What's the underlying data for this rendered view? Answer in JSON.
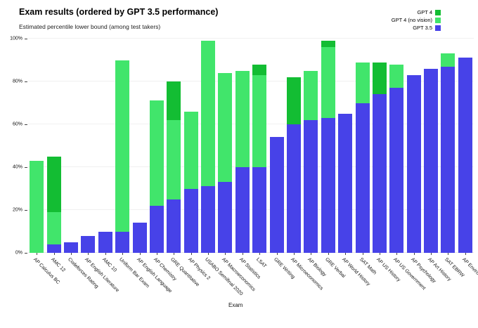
{
  "header": {
    "title": "Exam results (ordered by GPT 3.5 performance)",
    "subtitle": "Estimated percentile lower bound (among test takers)"
  },
  "legend": {
    "position": "top-right",
    "items": [
      {
        "name": "gpt4",
        "label": "GPT 4",
        "color": "#13bd33"
      },
      {
        "name": "gpt4-no-vision",
        "label": "GPT 4 (no vision)",
        "color": "#41e56b"
      },
      {
        "name": "gpt35",
        "label": "GPT 3.5",
        "color": "#4742e8"
      }
    ]
  },
  "chart_data": {
    "type": "bar",
    "title": "Exam results (ordered by GPT 3.5 performance)",
    "subtitle": "Estimated percentile lower bound (among test takers)",
    "xlabel": "Exam",
    "ylabel": "Estimated percentile lower bound (among test takers)",
    "ylim": [
      0,
      100
    ],
    "grid": true,
    "legend_position": "top-right",
    "colors": {
      "gpt4": "#13bd33",
      "gpt4_no_vision": "#41e56b",
      "gpt35": "#4742e8"
    },
    "yticks": [
      {
        "value": 0,
        "label": "0%"
      },
      {
        "value": 20,
        "label": "20%"
      },
      {
        "value": 40,
        "label": "40%"
      },
      {
        "value": 60,
        "label": "60%"
      },
      {
        "value": 80,
        "label": "80%"
      },
      {
        "value": 100,
        "label": "100%"
      }
    ],
    "exams": [
      {
        "exam": "AP Calculus BC",
        "gpt35": 0,
        "gpt4_no_vision": 43,
        "gpt4": 43
      },
      {
        "exam": "AMC 12",
        "gpt35": 4,
        "gpt4_no_vision": 19,
        "gpt4": 45
      },
      {
        "exam": "Codeforces Rating",
        "gpt35": 5,
        "gpt4_no_vision": 5,
        "gpt4": 5
      },
      {
        "exam": "AP English Literature",
        "gpt35": 8,
        "gpt4_no_vision": 8,
        "gpt4": 8
      },
      {
        "exam": "AMC 10",
        "gpt35": 10,
        "gpt4_no_vision": 10,
        "gpt4": 10
      },
      {
        "exam": "Uniform Bar Exam",
        "gpt35": 10,
        "gpt4_no_vision": 90,
        "gpt4": 90
      },
      {
        "exam": "AP English Language",
        "gpt35": 14,
        "gpt4_no_vision": 14,
        "gpt4": 14
      },
      {
        "exam": "AP Chemistry",
        "gpt35": 22,
        "gpt4_no_vision": 71,
        "gpt4": 71
      },
      {
        "exam": "GRE Quantitative",
        "gpt35": 25,
        "gpt4_no_vision": 62,
        "gpt4": 80
      },
      {
        "exam": "AP Physics 2",
        "gpt35": 30,
        "gpt4_no_vision": 66,
        "gpt4": 66
      },
      {
        "exam": "USABO Semifinal 2020",
        "gpt35": 31,
        "gpt4_no_vision": 99,
        "gpt4": 99
      },
      {
        "exam": "AP Macroeconomics",
        "gpt35": 33,
        "gpt4_no_vision": 84,
        "gpt4": 84
      },
      {
        "exam": "AP Statistics",
        "gpt35": 40,
        "gpt4_no_vision": 85,
        "gpt4": 85
      },
      {
        "exam": "LSAT",
        "gpt35": 40,
        "gpt4_no_vision": 83,
        "gpt4": 88
      },
      {
        "exam": "GRE Writing",
        "gpt35": 54,
        "gpt4_no_vision": 54,
        "gpt4": 54
      },
      {
        "exam": "AP Microeconomics",
        "gpt35": 60,
        "gpt4_no_vision": 60,
        "gpt4": 82
      },
      {
        "exam": "AP Biology",
        "gpt35": 62,
        "gpt4_no_vision": 85,
        "gpt4": 85
      },
      {
        "exam": "GRE Verbal",
        "gpt35": 63,
        "gpt4_no_vision": 96,
        "gpt4": 99
      },
      {
        "exam": "AP World History",
        "gpt35": 65,
        "gpt4_no_vision": 65,
        "gpt4": 65
      },
      {
        "exam": "SAT Math",
        "gpt35": 70,
        "gpt4_no_vision": 89,
        "gpt4": 89
      },
      {
        "exam": "AP US History",
        "gpt35": 74,
        "gpt4_no_vision": 74,
        "gpt4": 89
      },
      {
        "exam": "AP US Government",
        "gpt35": 77,
        "gpt4_no_vision": 88,
        "gpt4": 88
      },
      {
        "exam": "AP Psychology",
        "gpt35": 83,
        "gpt4_no_vision": 83,
        "gpt4": 83
      },
      {
        "exam": "AP Art History",
        "gpt35": 86,
        "gpt4_no_vision": 86,
        "gpt4": 86
      },
      {
        "exam": "SAT EBRW",
        "gpt35": 87,
        "gpt4_no_vision": 93,
        "gpt4": 93
      },
      {
        "exam": "AP Environmental Science",
        "gpt35": 91,
        "gpt4_no_vision": 91,
        "gpt4": 91
      }
    ]
  }
}
